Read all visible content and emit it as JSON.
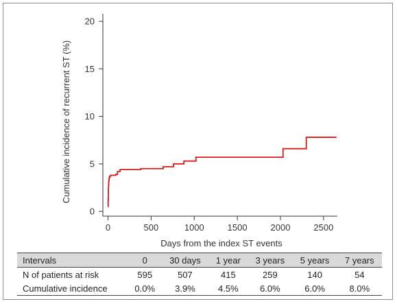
{
  "chart_data": {
    "type": "line",
    "xlabel": "Days from the index ST events",
    "ylabel": "Cumulative incidence of recurrent ST (%)",
    "xlim": [
      -60,
      2660
    ],
    "ylim": [
      -0.5,
      20.8
    ],
    "xticks": [
      0,
      500,
      1000,
      1500,
      2000,
      2500
    ],
    "yticks": [
      0,
      5,
      10,
      15,
      20
    ],
    "grid": false,
    "line_color": "#d81b1b",
    "series": [
      {
        "step": true,
        "x": [
          0,
          2,
          4,
          6,
          8,
          12,
          18,
          30,
          90,
          110,
          140,
          380,
          640,
          760,
          880,
          1020,
          2030,
          2300,
          2650
        ],
        "y": [
          0.5,
          1.2,
          2.4,
          2.8,
          3.2,
          3.5,
          3.7,
          3.8,
          3.9,
          4.2,
          4.4,
          4.5,
          4.7,
          5.0,
          5.3,
          5.7,
          6.6,
          7.8,
          7.8
        ]
      }
    ]
  },
  "table": {
    "header_label": "Intervals",
    "columns": [
      "0",
      "30 days",
      "1 year",
      "3 years",
      "5 years",
      "7 years"
    ],
    "rows": [
      {
        "label": "N of patients at risk",
        "values": [
          "595",
          "507",
          "415",
          "259",
          "140",
          "54"
        ]
      },
      {
        "label": "Cumulative incidence",
        "values": [
          "0.0%",
          "3.9%",
          "4.5%",
          "6.0%",
          "6.0%",
          "8.0%"
        ]
      }
    ]
  }
}
